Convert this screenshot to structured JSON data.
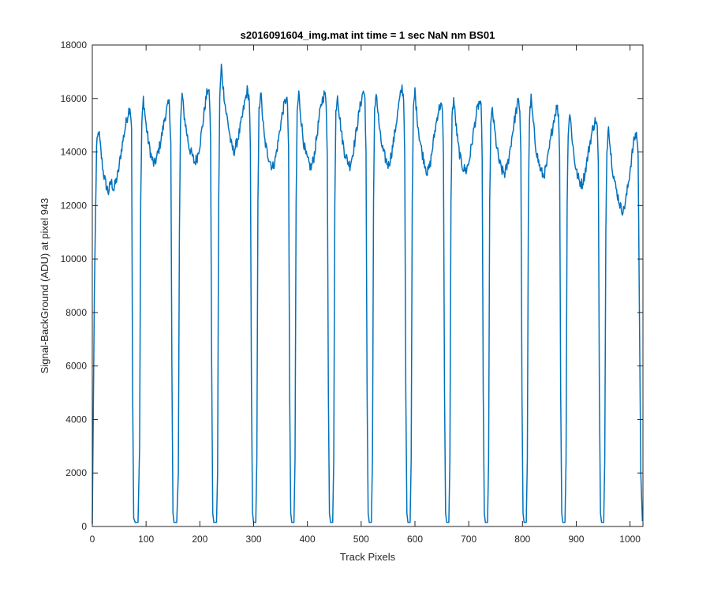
{
  "chart_data": {
    "type": "line",
    "title": "s2016091604_img.mat int time = 1 sec  NaN nm BS01",
    "xlabel": "Track Pixels",
    "ylabel": "Signal-BackGround (ADU) at pixel 943",
    "xlim": [
      0,
      1024
    ],
    "ylim": [
      0,
      18000
    ],
    "xticks": [
      0,
      100,
      200,
      300,
      400,
      500,
      600,
      700,
      800,
      900,
      1000
    ],
    "yticks": [
      0,
      2000,
      4000,
      6000,
      8000,
      10000,
      12000,
      14000,
      16000,
      18000
    ],
    "grid": false,
    "line_color": "#0072BD",
    "series": [
      {
        "values": [
          [
            0,
            100
          ],
          [
            4,
            9000
          ],
          [
            8,
            14200
          ],
          [
            12,
            14800
          ],
          [
            16,
            14000
          ],
          [
            20,
            13300
          ],
          [
            25,
            12800
          ],
          [
            30,
            12500
          ],
          [
            35,
            12900
          ],
          [
            40,
            12600
          ],
          [
            48,
            13200
          ],
          [
            55,
            14200
          ],
          [
            62,
            15000
          ],
          [
            67,
            15500
          ],
          [
            70,
            15700
          ],
          [
            73,
            15000
          ],
          [
            75,
            5000
          ],
          [
            77,
            300
          ],
          [
            80,
            150
          ],
          [
            85,
            150
          ],
          [
            88,
            3000
          ],
          [
            90,
            12000
          ],
          [
            92,
            15000
          ],
          [
            95,
            16000
          ],
          [
            100,
            15000
          ],
          [
            105,
            14300
          ],
          [
            110,
            13800
          ],
          [
            115,
            13500
          ],
          [
            120,
            13800
          ],
          [
            125,
            14200
          ],
          [
            130,
            14700
          ],
          [
            135,
            15300
          ],
          [
            140,
            15700
          ],
          [
            143,
            15800
          ],
          [
            146,
            14500
          ],
          [
            148,
            6000
          ],
          [
            150,
            500
          ],
          [
            152,
            150
          ],
          [
            157,
            150
          ],
          [
            160,
            2000
          ],
          [
            162,
            11000
          ],
          [
            164,
            15000
          ],
          [
            167,
            16200
          ],
          [
            170,
            15500
          ],
          [
            175,
            14800
          ],
          [
            180,
            14200
          ],
          [
            185,
            13900
          ],
          [
            190,
            13600
          ],
          [
            195,
            13800
          ],
          [
            200,
            14300
          ],
          [
            205,
            15000
          ],
          [
            210,
            15800
          ],
          [
            215,
            16400
          ],
          [
            218,
            16000
          ],
          [
            220,
            14500
          ],
          [
            222,
            6000
          ],
          [
            224,
            500
          ],
          [
            226,
            150
          ],
          [
            231,
            150
          ],
          [
            233,
            2000
          ],
          [
            235,
            12000
          ],
          [
            237,
            16000
          ],
          [
            240,
            17200
          ],
          [
            243,
            16500
          ],
          [
            248,
            15600
          ],
          [
            253,
            15000
          ],
          [
            258,
            14300
          ],
          [
            263,
            14000
          ],
          [
            268,
            14300
          ],
          [
            273,
            14700
          ],
          [
            278,
            15200
          ],
          [
            283,
            15800
          ],
          [
            288,
            16300
          ],
          [
            292,
            16000
          ],
          [
            294,
            14000
          ],
          [
            296,
            5000
          ],
          [
            298,
            500
          ],
          [
            300,
            150
          ],
          [
            304,
            150
          ],
          [
            306,
            2500
          ],
          [
            308,
            12000
          ],
          [
            310,
            15500
          ],
          [
            313,
            16300
          ],
          [
            316,
            15500
          ],
          [
            320,
            14500
          ],
          [
            325,
            14000
          ],
          [
            330,
            13700
          ],
          [
            335,
            13400
          ],
          [
            340,
            13700
          ],
          [
            345,
            14300
          ],
          [
            350,
            15000
          ],
          [
            355,
            15600
          ],
          [
            360,
            16000
          ],
          [
            363,
            15800
          ],
          [
            365,
            14000
          ],
          [
            367,
            5000
          ],
          [
            369,
            500
          ],
          [
            371,
            150
          ],
          [
            375,
            150
          ],
          [
            377,
            2500
          ],
          [
            379,
            12000
          ],
          [
            381,
            15500
          ],
          [
            384,
            16200
          ],
          [
            387,
            15500
          ],
          [
            392,
            14500
          ],
          [
            397,
            13900
          ],
          [
            402,
            13600
          ],
          [
            407,
            13400
          ],
          [
            412,
            13800
          ],
          [
            417,
            14500
          ],
          [
            422,
            15300
          ],
          [
            427,
            15900
          ],
          [
            432,
            16200
          ],
          [
            435,
            15800
          ],
          [
            437,
            14000
          ],
          [
            439,
            5000
          ],
          [
            441,
            500
          ],
          [
            443,
            150
          ],
          [
            447,
            150
          ],
          [
            449,
            2500
          ],
          [
            451,
            12000
          ],
          [
            453,
            15500
          ],
          [
            456,
            16200
          ],
          [
            459,
            15500
          ],
          [
            464,
            14600
          ],
          [
            469,
            14000
          ],
          [
            474,
            13700
          ],
          [
            479,
            13500
          ],
          [
            484,
            13900
          ],
          [
            489,
            14500
          ],
          [
            494,
            15200
          ],
          [
            499,
            15800
          ],
          [
            504,
            16300
          ],
          [
            507,
            16000
          ],
          [
            509,
            14000
          ],
          [
            511,
            5000
          ],
          [
            513,
            500
          ],
          [
            515,
            150
          ],
          [
            519,
            150
          ],
          [
            521,
            2500
          ],
          [
            523,
            12000
          ],
          [
            525,
            15500
          ],
          [
            528,
            16300
          ],
          [
            531,
            15500
          ],
          [
            536,
            14500
          ],
          [
            541,
            14000
          ],
          [
            546,
            13700
          ],
          [
            551,
            13500
          ],
          [
            556,
            13900
          ],
          [
            561,
            14500
          ],
          [
            566,
            15200
          ],
          [
            571,
            15900
          ],
          [
            576,
            16400
          ],
          [
            579,
            16000
          ],
          [
            581,
            14000
          ],
          [
            583,
            5000
          ],
          [
            585,
            500
          ],
          [
            587,
            150
          ],
          [
            591,
            150
          ],
          [
            593,
            2500
          ],
          [
            595,
            12000
          ],
          [
            597,
            15500
          ],
          [
            600,
            16300
          ],
          [
            603,
            15500
          ],
          [
            608,
            14600
          ],
          [
            613,
            14000
          ],
          [
            618,
            13600
          ],
          [
            623,
            13200
          ],
          [
            628,
            13500
          ],
          [
            633,
            14200
          ],
          [
            638,
            14900
          ],
          [
            643,
            15500
          ],
          [
            648,
            15800
          ],
          [
            651,
            15500
          ],
          [
            653,
            14000
          ],
          [
            655,
            5000
          ],
          [
            657,
            500
          ],
          [
            659,
            150
          ],
          [
            663,
            150
          ],
          [
            665,
            2500
          ],
          [
            667,
            12000
          ],
          [
            669,
            15300
          ],
          [
            672,
            16000
          ],
          [
            675,
            15300
          ],
          [
            680,
            14300
          ],
          [
            685,
            13700
          ],
          [
            690,
            13400
          ],
          [
            695,
            13300
          ],
          [
            700,
            13600
          ],
          [
            705,
            14200
          ],
          [
            710,
            14900
          ],
          [
            715,
            15500
          ],
          [
            720,
            15900
          ],
          [
            723,
            15600
          ],
          [
            725,
            14000
          ],
          [
            727,
            5000
          ],
          [
            729,
            500
          ],
          [
            731,
            150
          ],
          [
            735,
            150
          ],
          [
            737,
            2500
          ],
          [
            739,
            12000
          ],
          [
            741,
            15000
          ],
          [
            744,
            15600
          ],
          [
            747,
            15000
          ],
          [
            752,
            14200
          ],
          [
            757,
            13600
          ],
          [
            762,
            13300
          ],
          [
            767,
            13200
          ],
          [
            772,
            13500
          ],
          [
            777,
            14100
          ],
          [
            782,
            14800
          ],
          [
            787,
            15400
          ],
          [
            792,
            15900
          ],
          [
            795,
            15600
          ],
          [
            797,
            14000
          ],
          [
            799,
            5000
          ],
          [
            801,
            500
          ],
          [
            803,
            150
          ],
          [
            807,
            150
          ],
          [
            809,
            2500
          ],
          [
            811,
            12000
          ],
          [
            813,
            15300
          ],
          [
            816,
            16000
          ],
          [
            819,
            15300
          ],
          [
            824,
            14300
          ],
          [
            829,
            13700
          ],
          [
            834,
            13300
          ],
          [
            839,
            13100
          ],
          [
            844,
            13400
          ],
          [
            849,
            14000
          ],
          [
            854,
            14700
          ],
          [
            859,
            15300
          ],
          [
            864,
            15700
          ],
          [
            867,
            15400
          ],
          [
            869,
            14000
          ],
          [
            871,
            5000
          ],
          [
            873,
            500
          ],
          [
            875,
            150
          ],
          [
            879,
            150
          ],
          [
            881,
            2500
          ],
          [
            883,
            12000
          ],
          [
            885,
            14800
          ],
          [
            888,
            15500
          ],
          [
            891,
            14800
          ],
          [
            896,
            13800
          ],
          [
            901,
            13200
          ],
          [
            906,
            12900
          ],
          [
            911,
            12800
          ],
          [
            916,
            13200
          ],
          [
            921,
            13800
          ],
          [
            926,
            14400
          ],
          [
            931,
            14900
          ],
          [
            936,
            15200
          ],
          [
            939,
            14900
          ],
          [
            941,
            13500
          ],
          [
            943,
            5000
          ],
          [
            945,
            500
          ],
          [
            947,
            150
          ],
          [
            951,
            150
          ],
          [
            953,
            2500
          ],
          [
            955,
            11000
          ],
          [
            957,
            14000
          ],
          [
            960,
            15100
          ],
          [
            963,
            14200
          ],
          [
            968,
            13300
          ],
          [
            973,
            12700
          ],
          [
            978,
            12300
          ],
          [
            983,
            11900
          ],
          [
            988,
            11800
          ],
          [
            993,
            12300
          ],
          [
            998,
            13000
          ],
          [
            1003,
            13800
          ],
          [
            1008,
            14500
          ],
          [
            1012,
            14700
          ],
          [
            1015,
            14000
          ],
          [
            1017,
            9000
          ],
          [
            1020,
            2000
          ],
          [
            1023,
            200
          ]
        ]
      }
    ]
  }
}
